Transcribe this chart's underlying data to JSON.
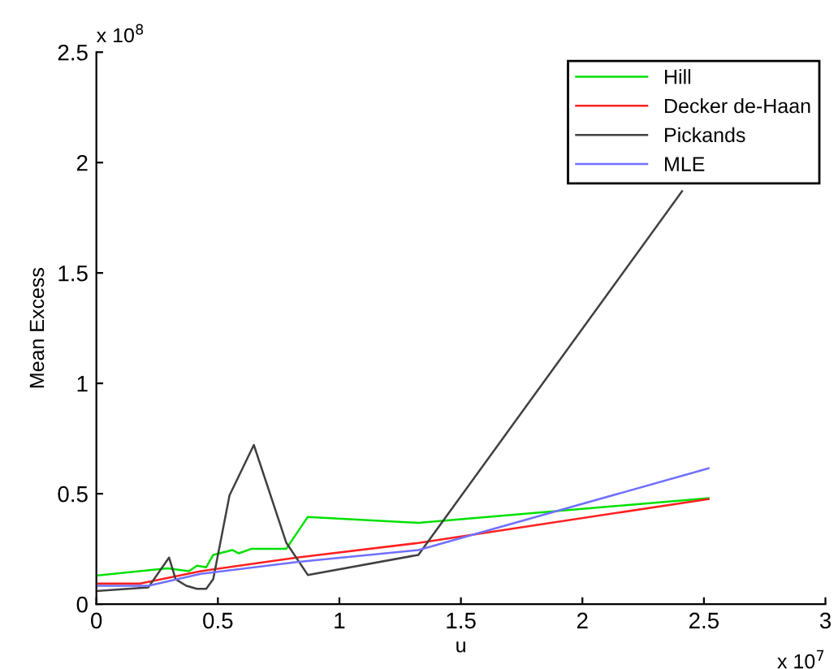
{
  "chart_data": {
    "type": "line",
    "xlabel": "u",
    "ylabel": "Mean Excess",
    "xlim": [
      0,
      3
    ],
    "ylim": [
      0,
      2.5
    ],
    "xticks": [
      0,
      0.5,
      1,
      1.5,
      2,
      2.5,
      3
    ],
    "yticks": [
      0,
      0.5,
      1,
      1.5,
      2,
      2.5
    ],
    "annotations": [
      "x 10$^{8}$",
      "x 10$^{7}$"
    ],
    "legend": "top right",
    "grid": false,
    "line_style": "solid",
    "marker": "none",
    "series": [
      {
        "name": "Hill",
        "color": "#00e000",
        "x": [
          0.008,
          0.292,
          0.381,
          0.414,
          0.452,
          0.481,
          0.559,
          0.586,
          0.637,
          0.781,
          0.87,
          1.325,
          2.519
        ],
        "values": [
          0.13,
          0.162,
          0.149,
          0.174,
          0.167,
          0.223,
          0.245,
          0.23,
          0.25,
          0.25,
          0.395,
          0.368,
          0.48
        ]
      },
      {
        "name": "Decker de-Haan",
        "color": "#ff2020",
        "x": [
          0.008,
          0.18,
          0.43,
          0.825,
          1.325,
          2.519
        ],
        "values": [
          0.093,
          0.093,
          0.149,
          0.211,
          0.277,
          0.476
        ]
      },
      {
        "name": "Pickands",
        "color": "#404040",
        "x": [
          0,
          0.214,
          0.299,
          0.326,
          0.37,
          0.414,
          0.452,
          0.481,
          0.548,
          0.648,
          0.781,
          0.87,
          1.325,
          2.41
        ],
        "values": [
          0.059,
          0.076,
          0.211,
          0.113,
          0.083,
          0.069,
          0.069,
          0.113,
          0.493,
          0.721,
          0.279,
          0.132,
          0.223,
          1.87
        ]
      },
      {
        "name": "MLE",
        "color": "#7070ff",
        "x": [
          0.008,
          0.214,
          0.43,
          0.825,
          1.325,
          2.519
        ],
        "values": [
          0.083,
          0.083,
          0.137,
          0.191,
          0.245,
          0.615
        ]
      }
    ]
  }
}
